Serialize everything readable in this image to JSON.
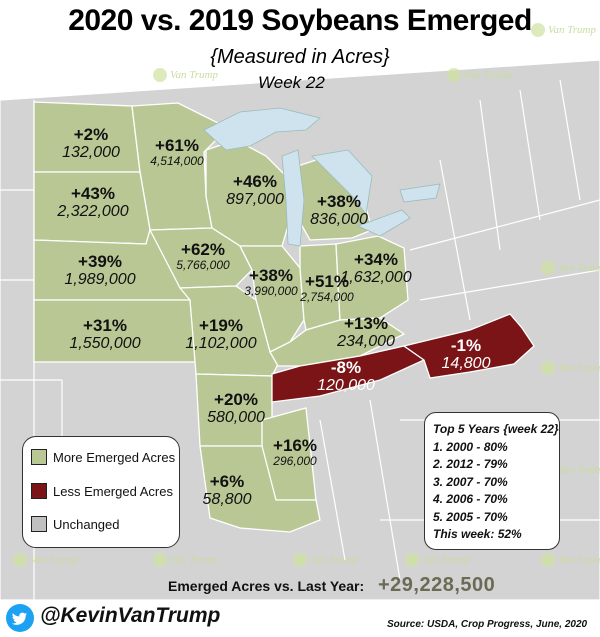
{
  "title": "2020 vs. 2019 Soybeans Emerged",
  "subtitle": "{Measured in Acres}",
  "week": "Week 22",
  "colors": {
    "more": "#b9c795",
    "less": "#7b1417",
    "unchanged": "#d3d3d3",
    "lake": "#cfe3ee",
    "twitter": "#1da1f2"
  },
  "states": {
    "nd": {
      "pct": "+2%",
      "value": "132,000"
    },
    "mn": {
      "pct": "+61%",
      "value": "4,514,000"
    },
    "sd": {
      "pct": "+43%",
      "value": "2,322,000"
    },
    "wi": {
      "pct": "+46%",
      "value": "897,000"
    },
    "mi": {
      "pct": "+38%",
      "value": "836,000"
    },
    "ne": {
      "pct": "+39%",
      "value": "1,989,000"
    },
    "ia": {
      "pct": "+62%",
      "value": "5,766,000"
    },
    "il": {
      "pct": "+38%",
      "value": "3,990,000"
    },
    "in": {
      "pct": "+51%",
      "value": "2,754,000"
    },
    "oh": {
      "pct": "+34%",
      "value": "1,632,000"
    },
    "ks": {
      "pct": "+31%",
      "value": "1,550,000"
    },
    "mo": {
      "pct": "+19%",
      "value": "1,102,000"
    },
    "ky": {
      "pct": "+13%",
      "value": "234,000"
    },
    "nc": {
      "pct": "-1%",
      "value": "14,800"
    },
    "tn": {
      "pct": "-8%",
      "value": "120,000"
    },
    "ar": {
      "pct": "+20%",
      "value": "580,000"
    },
    "ms": {
      "pct": "+16%",
      "value": "296,000"
    },
    "la": {
      "pct": "+6%",
      "value": "58,800"
    }
  },
  "legend": {
    "more": "More Emerged Acres",
    "less": "Less Emerged Acres",
    "unchanged": "Unchanged"
  },
  "top5": {
    "title": "Top 5 Years {week 22}",
    "items": [
      "1. 2000 - 80%",
      "2. 2012 - 79%",
      "3. 2007 - 70%",
      "4. 2006 - 70%",
      "5. 2005 - 70%"
    ],
    "this_week": "This week: 52%"
  },
  "total": {
    "label": "Emerged Acres vs. Last Year:",
    "value": "+29,228,500"
  },
  "handle": "@KevinVanTrump",
  "source": "Source: USDA, Crop Progress, June, 2020",
  "watermark": "The Van Trump Report"
}
